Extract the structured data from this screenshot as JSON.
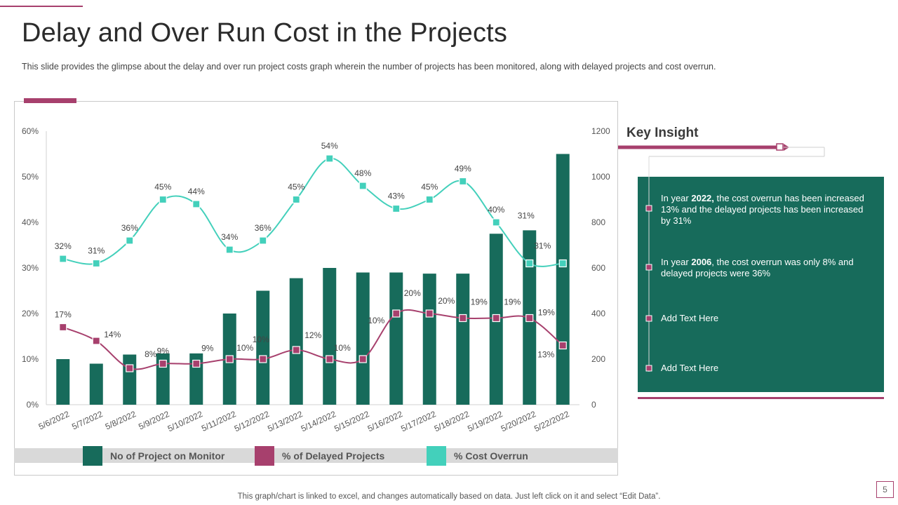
{
  "title": "Delay and Over Run Cost in the Projects",
  "subtitle": "This slide provides  the glimpse about the delay and over run project costs graph wherein the number of projects has been monitored,  along with delayed projects and cost overrun.",
  "footer": "This graph/chart is linked to excel,  and changes automatically based on data. Just left click on it and select “Edit Data”.",
  "page_number": "5",
  "colors": {
    "bar": "#176b5b",
    "delayed": "#a7406d",
    "overrun": "#43d0bb",
    "accent": "#a7406d"
  },
  "legend": [
    {
      "label": "No of Project on Monitor",
      "color": "#176b5b"
    },
    {
      "label": "% of Delayed Projects",
      "color": "#a7406d"
    },
    {
      "label": "% Cost  Overrun",
      "color": "#43d0bb"
    }
  ],
  "chart_data": {
    "type": "bar",
    "categories": [
      "5/6/2022",
      "5/7/2022",
      "5/8/2022",
      "5/9/2022",
      "5/10/2022",
      "5/11/2022",
      "5/12/2022",
      "5/13/2022",
      "5/14/2022",
      "5/15/2022",
      "5/16/2022",
      "5/17/2022",
      "5/18/2022",
      "5/19/2022",
      "5/20/2022",
      "5/22/2022"
    ],
    "series": [
      {
        "name": "No of Project on Monitor",
        "type": "bar",
        "axis": "right",
        "values": [
          200,
          180,
          220,
          225,
          225,
          400,
          500,
          555,
          600,
          580,
          580,
          575,
          575,
          750,
          765,
          1100
        ]
      },
      {
        "name": "% of Delayed Projects",
        "type": "line",
        "axis": "left",
        "values": [
          17,
          14,
          8,
          9,
          9,
          10,
          10,
          12,
          10,
          10,
          20,
          20,
          19,
          19,
          19,
          13
        ],
        "labels": [
          "17%",
          "14%",
          "8%",
          "9%",
          "9%",
          "10%",
          "10%",
          "12%",
          "10%",
          "10%",
          "20%",
          "20%",
          "19%",
          "19%",
          "19%",
          "13%"
        ]
      },
      {
        "name": "% Cost Overrun",
        "type": "line",
        "axis": "left",
        "values": [
          32,
          31,
          36,
          45,
          44,
          34,
          36,
          45,
          54,
          48,
          43,
          45,
          49,
          40,
          31,
          31
        ],
        "labels": [
          "32%",
          "31%",
          "36%",
          "45%",
          "44%",
          "34%",
          "36%",
          "45%",
          "54%",
          "48%",
          "43%",
          "45%",
          "49%",
          "40%",
          "31%",
          "31%"
        ]
      }
    ],
    "y_left": {
      "min": 0,
      "max": 60,
      "ticks": [
        "0%",
        "10%",
        "20%",
        "30%",
        "40%",
        "50%",
        "60%"
      ]
    },
    "y_right": {
      "min": 0,
      "max": 1200,
      "ticks": [
        "0",
        "200",
        "400",
        "600",
        "800",
        "1000",
        "1200"
      ]
    },
    "legend_position": "bottom"
  },
  "key_insight": {
    "title": "Key Insight",
    "items": [
      {
        "pre": "In year ",
        "bold": "2022,",
        "post": " the cost overrun  has been increased 13% and the delayed projects has been increased by 31%"
      },
      {
        "pre": "In year ",
        "bold": "2006",
        "post": ", the cost overrun  was only 8% and delayed projects were  36%"
      },
      {
        "pre": "",
        "bold": "",
        "post": "Add Text Here"
      },
      {
        "pre": "",
        "bold": "",
        "post": "Add Text Here"
      }
    ]
  }
}
